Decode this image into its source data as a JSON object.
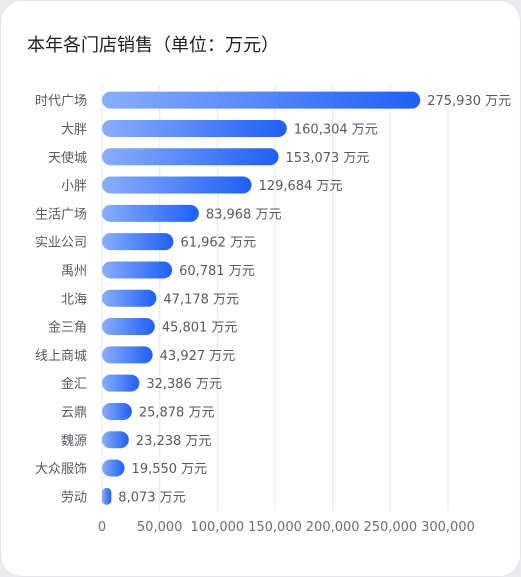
{
  "chart_data": {
    "type": "bar",
    "orientation": "horizontal",
    "title": "本年各门店销售（单位：万元）",
    "value_suffix": " 万元",
    "categories": [
      "时代广场",
      "大胖",
      "天使城",
      "小胖",
      "生活广场",
      "实业公司",
      "禹州",
      "北海",
      "金三角",
      "线上商城",
      "金汇",
      "云鼎",
      "魏源",
      "大众服饰",
      "劳动"
    ],
    "values": [
      275930,
      160304,
      153073,
      129684,
      83968,
      61962,
      60781,
      47178,
      45801,
      43927,
      32386,
      25878,
      23238,
      19550,
      8073
    ],
    "xlim": [
      0,
      300000
    ],
    "x_ticks": [
      "0",
      "50,000",
      "100,000",
      "150,000",
      "200,000",
      "250,000",
      "300,000"
    ],
    "grid": true,
    "colors": {
      "bar_start": "#8aaefc",
      "bar_end": "#1f5ff5"
    }
  }
}
